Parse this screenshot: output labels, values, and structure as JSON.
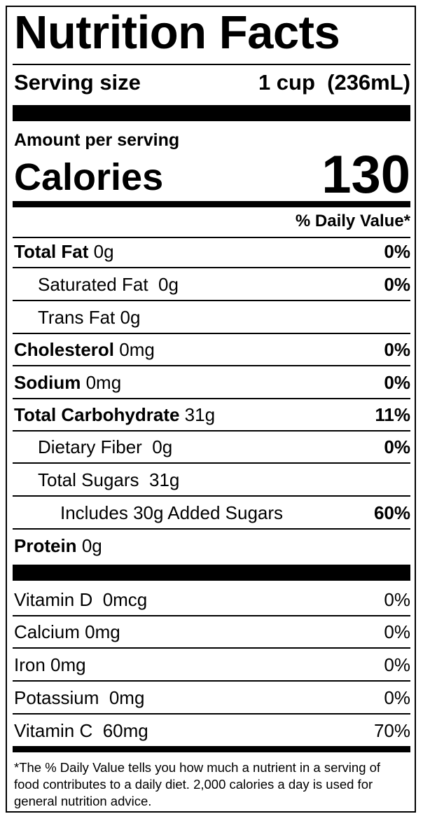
{
  "title": "Nutrition Facts",
  "serving": {
    "label": "Serving size",
    "value": "1 cup  (236mL)"
  },
  "amount_per_serving": "Amount per serving",
  "calories": {
    "label": "Calories",
    "value": 130
  },
  "daily_value_header": "% Daily Value*",
  "nutrients": [
    {
      "name": "Total Fat",
      "amount": "0g",
      "daily_value": "0%"
    },
    {
      "name": "Saturated Fat",
      "amount": "0g",
      "daily_value": "0%"
    },
    {
      "name": "Trans Fat",
      "amount": "0g"
    },
    {
      "name": "Cholesterol",
      "amount": "0mg",
      "daily_value": "0%"
    },
    {
      "name": "Sodium",
      "amount": "0mg",
      "daily_value": "0%"
    },
    {
      "name": "Total Carbohydrate",
      "amount": "31g",
      "daily_value": "11%"
    },
    {
      "name": "Dietary Fiber",
      "amount": "0g",
      "daily_value": "0%"
    },
    {
      "name": "Total Sugars",
      "amount": "31g"
    },
    {
      "name": "Includes 30g Added Sugars",
      "daily_value": "60%"
    },
    {
      "name": "Protein",
      "amount": "0g"
    }
  ],
  "vitamins": [
    {
      "name": "Vitamin D",
      "amount": "0mcg",
      "daily_value": "0%"
    },
    {
      "name": "Calcium",
      "amount": "0mg",
      "daily_value": "0%"
    },
    {
      "name": "Iron",
      "amount": "0mg",
      "daily_value": "0%"
    },
    {
      "name": "Potassium",
      "amount": "0mg",
      "daily_value": "0%"
    },
    {
      "name": "Vitamin C",
      "amount": "60mg",
      "daily_value": "70%"
    }
  ],
  "footnote": "*The % Daily Value tells you how much a nutrient in a serving of food contributes to a daily diet. 2,000 calories a day is used for general nutrition advice."
}
